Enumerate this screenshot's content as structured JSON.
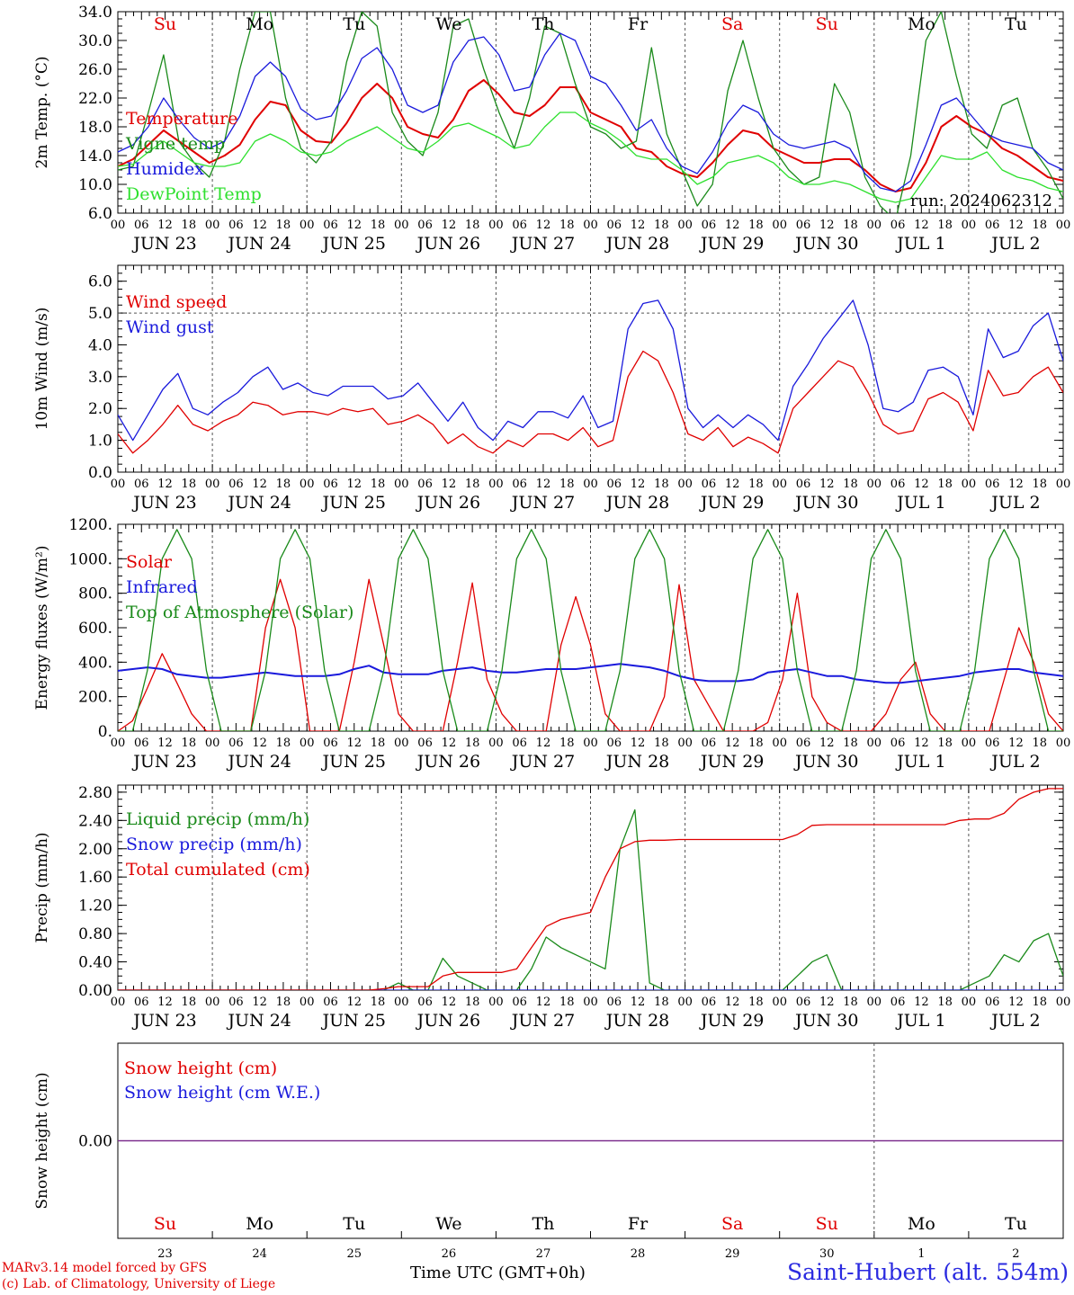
{
  "days": [
    "JUN 23",
    "JUN 24",
    "JUN 25",
    "JUN 26",
    "JUN 27",
    "JUN 28",
    "JUN 29",
    "JUN 30",
    "JUL  1",
    "JUL  2"
  ],
  "weekdays": [
    "Su",
    "Mo",
    "Tu",
    "We",
    "Th",
    "Fr",
    "Sa",
    "Su",
    "Mo",
    "Tu"
  ],
  "weekday_colors": [
    "#e00000",
    "#000000",
    "#000000",
    "#000000",
    "#000000",
    "#000000",
    "#e00000",
    "#e00000",
    "#000000",
    "#000000"
  ],
  "day_numbers": [
    "23",
    "24",
    "25",
    "26",
    "27",
    "28",
    "29",
    "30",
    "1",
    "2"
  ],
  "hour_ticks": [
    "00",
    "06",
    "12",
    "18"
  ],
  "run_label": "run: 2024062312",
  "footer": {
    "model": "MARv3.14 model forced by GFS",
    "lab": "(c) Lab. of Climatology, University of Liege",
    "time_label": "Time UTC (GMT+0h)",
    "station": "Saint-Hubert (alt. 554m)"
  },
  "colors": {
    "red": "#e00000",
    "green": "#1a8a1a",
    "blue": "#1a1adc",
    "lightgreen": "#2ee02e",
    "purple": "#7a2a8a"
  },
  "chart_data": [
    {
      "type": "line",
      "ylabel": "2m Temp. (°C)",
      "ylim": [
        6,
        34
      ],
      "yticks": [
        "6.0",
        "10.0",
        "14.0",
        "18.0",
        "22.0",
        "26.0",
        "30.0",
        "34.0"
      ],
      "series": [
        {
          "name": "Temperature",
          "color": "#e00000",
          "values": [
            12.5,
            13.5,
            15.5,
            17.5,
            16,
            14.5,
            13,
            14,
            15.5,
            19,
            21.5,
            21,
            17.5,
            16,
            15.8,
            18.5,
            22,
            24,
            22,
            18,
            17,
            16.5,
            19,
            23,
            24.5,
            22.5,
            20,
            19.5,
            21,
            23.5,
            23.5,
            20,
            19,
            18,
            15,
            14.5,
            12.5,
            11.5,
            11,
            13,
            15.5,
            17.5,
            17,
            15,
            14,
            13,
            13,
            13.5,
            13.5,
            12,
            10,
            9,
            9.5,
            13,
            18,
            19.5,
            18,
            17,
            15,
            14,
            12.5,
            11,
            10.5
          ]
        },
        {
          "name": "Vigne temp",
          "color": "#1a8a1a",
          "values": [
            12,
            12.5,
            20,
            28,
            16,
            13,
            11,
            16,
            26,
            34,
            34,
            22,
            15,
            13,
            16,
            27,
            34,
            32,
            20,
            16,
            14,
            20,
            32,
            33,
            26,
            20,
            15,
            22,
            32,
            31,
            24,
            18,
            17,
            15,
            16,
            29,
            17,
            12,
            7,
            10,
            23,
            30,
            22,
            15,
            12,
            10,
            11,
            24,
            20,
            11,
            7,
            5,
            14,
            30,
            34,
            25,
            17,
            15,
            21,
            22,
            15,
            12,
            8
          ]
        },
        {
          "name": "Humidex",
          "color": "#1a1adc",
          "values": [
            14.5,
            15.5,
            18,
            22,
            19,
            16.5,
            15,
            16,
            19.5,
            25,
            27,
            25,
            20.5,
            19,
            19.5,
            23,
            27.5,
            29,
            26,
            21,
            20,
            21,
            27,
            30,
            30.5,
            28,
            23,
            23.5,
            28,
            31,
            30,
            25,
            24,
            21,
            17.5,
            19,
            15,
            12.5,
            11.5,
            14.5,
            18.5,
            21,
            20,
            17,
            15.5,
            15,
            15.5,
            16,
            15,
            11.5,
            9.5,
            9,
            10.5,
            15.5,
            21,
            22,
            19.5,
            17,
            16,
            15.5,
            15,
            13,
            12
          ]
        },
        {
          "name": "DewPoint Temp",
          "color": "#2ee02e",
          "values": [
            12.5,
            12.8,
            14.5,
            16,
            14.5,
            13,
            12.5,
            12.5,
            13,
            16,
            17,
            16,
            14.5,
            14,
            14.5,
            16,
            17,
            18,
            16.5,
            15,
            14.5,
            16,
            18,
            18.5,
            17.5,
            16.5,
            15,
            15.5,
            18,
            20,
            20,
            18.5,
            17.5,
            16,
            14,
            13.5,
            13.5,
            12,
            10,
            11,
            13,
            13.5,
            14,
            13,
            11,
            10,
            10,
            10.5,
            10,
            9,
            8,
            7.5,
            8,
            11,
            14,
            13.5,
            13.5,
            14.5,
            12,
            11,
            10.5,
            9.5,
            9
          ]
        }
      ]
    },
    {
      "type": "line",
      "ylabel": "10m Wind (m/s)",
      "ylim": [
        0,
        6.5
      ],
      "yticks": [
        "0.0",
        "1.0",
        "2.0",
        "3.0",
        "4.0",
        "5.0",
        "6.0"
      ],
      "series": [
        {
          "name": "Wind speed",
          "color": "#e00000",
          "values": [
            1.2,
            0.6,
            1,
            1.5,
            2.1,
            1.5,
            1.3,
            1.6,
            1.8,
            2.2,
            2.1,
            1.8,
            1.9,
            1.9,
            1.8,
            2,
            1.9,
            2,
            1.5,
            1.6,
            1.8,
            1.5,
            0.9,
            1.2,
            0.8,
            0.6,
            1,
            0.8,
            1.2,
            1.2,
            1,
            1.4,
            0.8,
            1,
            3,
            3.8,
            3.5,
            2.5,
            1.2,
            1,
            1.4,
            0.8,
            1.1,
            0.9,
            0.6,
            2,
            2.5,
            3,
            3.5,
            3.3,
            2.5,
            1.5,
            1.2,
            1.3,
            2.3,
            2.5,
            2.2,
            1.3,
            3.2,
            2.4,
            2.5,
            3,
            3.3,
            2.5
          ]
        },
        {
          "name": "Wind gust",
          "color": "#1a1adc",
          "values": [
            1.8,
            1,
            1.8,
            2.6,
            3.1,
            2,
            1.8,
            2.2,
            2.5,
            3,
            3.3,
            2.6,
            2.8,
            2.5,
            2.4,
            2.7,
            2.7,
            2.7,
            2.3,
            2.4,
            2.8,
            2.2,
            1.6,
            2.2,
            1.4,
            1,
            1.6,
            1.4,
            1.9,
            1.9,
            1.7,
            2.4,
            1.4,
            1.6,
            4.5,
            5.3,
            5.4,
            4.5,
            2,
            1.4,
            1.8,
            1.4,
            1.8,
            1.5,
            1,
            2.7,
            3.4,
            4.2,
            4.8,
            5.4,
            4,
            2,
            1.9,
            2.2,
            3.2,
            3.3,
            3,
            1.8,
            4.5,
            3.6,
            3.8,
            4.6,
            5,
            3.5
          ]
        }
      ]
    },
    {
      "type": "line",
      "ylabel": "Energy fluxes (W/m²)",
      "ylim": [
        0,
        1200
      ],
      "yticks": [
        "0.",
        "200.",
        "400.",
        "600.",
        "800.",
        "1000.",
        "1200."
      ],
      "series": [
        {
          "name": "Solar",
          "color": "#e00000",
          "values": [
            0,
            60,
            250,
            450,
            280,
            100,
            0,
            0,
            0,
            0,
            600,
            880,
            600,
            0,
            0,
            0,
            400,
            880,
            500,
            100,
            0,
            0,
            0,
            400,
            860,
            300,
            100,
            0,
            0,
            0,
            500,
            780,
            500,
            100,
            0,
            0,
            0,
            200,
            850,
            300,
            150,
            0,
            0,
            0,
            50,
            300,
            800,
            200,
            50,
            0,
            0,
            0,
            100,
            300,
            400,
            100,
            0,
            0,
            0,
            0,
            300,
            600,
            400,
            100,
            0
          ]
        },
        {
          "name": "Infrared",
          "color": "#1a1adc",
          "values": [
            350,
            360,
            370,
            360,
            330,
            320,
            310,
            310,
            320,
            330,
            340,
            330,
            320,
            320,
            320,
            330,
            360,
            380,
            340,
            330,
            330,
            330,
            350,
            360,
            370,
            350,
            340,
            340,
            350,
            360,
            360,
            360,
            370,
            380,
            390,
            380,
            370,
            350,
            320,
            300,
            290,
            290,
            290,
            300,
            340,
            350,
            360,
            340,
            320,
            320,
            300,
            290,
            280,
            280,
            290,
            300,
            310,
            320,
            340,
            350,
            360,
            360,
            340,
            330,
            320
          ]
        },
        {
          "name": "Top of Atmosphere (Solar)",
          "color": "#1a8a1a",
          "values": [
            0,
            0,
            350,
            1000,
            1170,
            1000,
            350,
            0,
            0,
            0,
            350,
            1000,
            1170,
            1000,
            350,
            0,
            0,
            0,
            350,
            1000,
            1170,
            1000,
            350,
            0,
            0,
            0,
            350,
            1000,
            1170,
            1000,
            350,
            0,
            0,
            0,
            350,
            1000,
            1170,
            1000,
            350,
            0,
            0,
            0,
            350,
            1000,
            1170,
            1000,
            350,
            0,
            0,
            0,
            350,
            1000,
            1170,
            1000,
            350,
            0,
            0,
            0,
            350,
            1000,
            1170,
            1000,
            350,
            0,
            0
          ]
        }
      ]
    },
    {
      "type": "line",
      "ylabel": "Precip (mm/h)",
      "ylim": [
        0,
        2.9
      ],
      "yticks": [
        "0.00",
        "0.40",
        "0.80",
        "1.20",
        "1.60",
        "2.00",
        "2.40",
        "2.80"
      ],
      "series": [
        {
          "name": "Liquid precip (mm/h)",
          "color": "#1a8a1a",
          "values": [
            0,
            0,
            0,
            0,
            0,
            0,
            0,
            0,
            0,
            0,
            0,
            0,
            0,
            0,
            0,
            0,
            0,
            0,
            0,
            0.1,
            0,
            0,
            0.45,
            0.2,
            0.1,
            0,
            0,
            0,
            0.3,
            0.75,
            0.6,
            0.5,
            0.4,
            0.3,
            2,
            2.55,
            0.1,
            0,
            0,
            0,
            0,
            0,
            0,
            0,
            0,
            0,
            0.2,
            0.4,
            0.5,
            0,
            0,
            0,
            0,
            0,
            0,
            0,
            0,
            0,
            0.1,
            0.2,
            0.5,
            0.4,
            0.7,
            0.8,
            0.2
          ]
        },
        {
          "name": "Snow precip (mm/h)",
          "color": "#1a1adc",
          "values": [
            0,
            0
          ]
        },
        {
          "name": "Total cumulated (cm)",
          "color": "#e00000",
          "values": [
            0,
            0,
            0,
            0,
            0,
            0,
            0,
            0,
            0,
            0,
            0,
            0,
            0,
            0,
            0,
            0,
            0,
            0,
            0.02,
            0.05,
            0.05,
            0.05,
            0.2,
            0.25,
            0.25,
            0.25,
            0.25,
            0.3,
            0.6,
            0.9,
            1.0,
            1.05,
            1.1,
            1.6,
            2.0,
            2.1,
            2.12,
            2.12,
            2.13,
            2.13,
            2.13,
            2.13,
            2.13,
            2.13,
            2.13,
            2.13,
            2.2,
            2.33,
            2.34,
            2.34,
            2.34,
            2.34,
            2.34,
            2.34,
            2.34,
            2.34,
            2.34,
            2.4,
            2.42,
            2.42,
            2.5,
            2.7,
            2.8,
            2.85,
            2.85
          ]
        }
      ]
    },
    {
      "type": "line",
      "ylabel": "Snow height (cm)",
      "ylim": [
        -1,
        1
      ],
      "yticks": [
        "0.00"
      ],
      "series": [
        {
          "name": "Snow height (cm)",
          "color": "#e00000",
          "values": [
            0,
            0
          ]
        },
        {
          "name": "Snow height (cm W.E.)",
          "color": "#1a1adc",
          "values": [
            0,
            0
          ]
        }
      ]
    }
  ]
}
